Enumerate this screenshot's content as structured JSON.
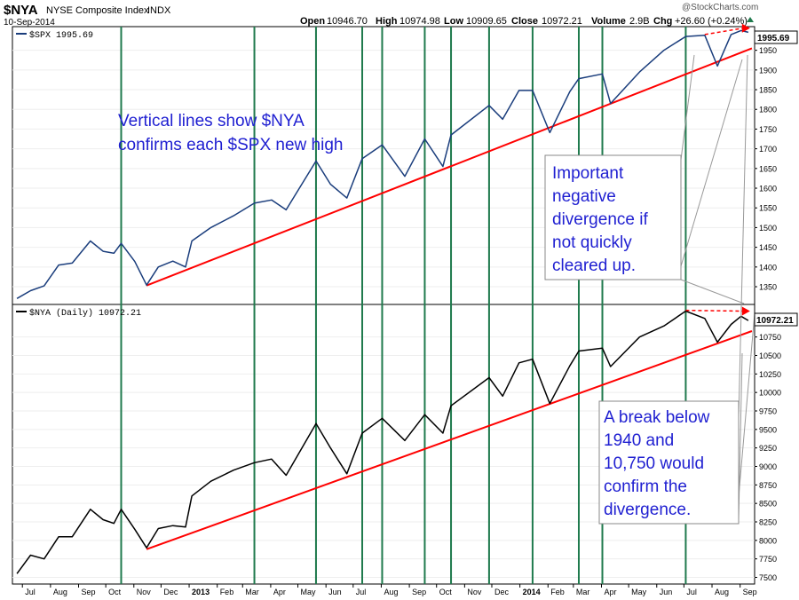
{
  "header": {
    "symbol": "$NYA",
    "name": "NYSE Composite Index",
    "exchange": "INDX",
    "date": "10-Sep-2014",
    "open_label": "Open",
    "open": "10946.70",
    "high_label": "High",
    "high": "10974.98",
    "low_label": "Low",
    "low": "10909.65",
    "close_label": "Close",
    "close": "10972.21",
    "volume_label": "Volume",
    "volume": "2.9B",
    "chg_label": "Chg",
    "chg": "+26.60 (+0.24%)",
    "watermark": "@StockCharts.com"
  },
  "colors": {
    "spx_line": "#1a3d7c",
    "nya_line": "#000000",
    "vlines": "#1f7a4d",
    "trend": "#ff0000",
    "annotation_text": "#1f1fd1"
  },
  "chart_data": {
    "type": "line",
    "x_ticks": [
      "Jul",
      "Aug",
      "Sep",
      "Oct",
      "Nov",
      "Dec",
      "2013",
      "Feb",
      "Mar",
      "Apr",
      "May",
      "Jun",
      "Jul",
      "Aug",
      "Sep",
      "Oct",
      "Nov",
      "Dec",
      "2014",
      "Feb",
      "Mar",
      "Apr",
      "May",
      "Jun",
      "Jul",
      "Aug",
      "Sep"
    ],
    "x_tick_bold": [
      false,
      false,
      false,
      false,
      false,
      false,
      true,
      false,
      false,
      false,
      false,
      false,
      false,
      false,
      false,
      false,
      false,
      false,
      true,
      false,
      false,
      false,
      false,
      false,
      false,
      false,
      false
    ],
    "vertical_line_dates": [
      "2012-10-18",
      "2013-03-14",
      "2013-05-21",
      "2013-07-11",
      "2013-08-02",
      "2013-09-18",
      "2013-10-17",
      "2013-11-28",
      "2014-01-15",
      "2014-03-07",
      "2014-04-02",
      "2014-07-03"
    ],
    "panels": [
      {
        "series_name": "$SPX",
        "label": "$SPX 1995.69",
        "last_value": "1995.69",
        "y_ticks": [
          1350,
          1400,
          1450,
          1500,
          1550,
          1600,
          1650,
          1700,
          1750,
          1800,
          1850,
          1900,
          1950
        ],
        "y_range": [
          1305,
          2010
        ],
        "points": [
          [
            "2012-06-25",
            1320
          ],
          [
            "2012-07-10",
            1340
          ],
          [
            "2012-07-25",
            1352
          ],
          [
            "2012-08-10",
            1405
          ],
          [
            "2012-08-25",
            1410
          ],
          [
            "2012-09-14",
            1466
          ],
          [
            "2012-09-28",
            1440
          ],
          [
            "2012-10-10",
            1435
          ],
          [
            "2012-10-18",
            1460
          ],
          [
            "2012-11-02",
            1414
          ],
          [
            "2012-11-15",
            1354
          ],
          [
            "2012-11-28",
            1400
          ],
          [
            "2012-12-14",
            1415
          ],
          [
            "2012-12-28",
            1400
          ],
          [
            "2013-01-04",
            1466
          ],
          [
            "2013-01-25",
            1500
          ],
          [
            "2013-02-19",
            1530
          ],
          [
            "2013-03-14",
            1562
          ],
          [
            "2013-04-02",
            1570
          ],
          [
            "2013-04-18",
            1545
          ],
          [
            "2013-05-21",
            1669
          ],
          [
            "2013-06-06",
            1610
          ],
          [
            "2013-06-24",
            1575
          ],
          [
            "2013-07-11",
            1675
          ],
          [
            "2013-08-02",
            1710
          ],
          [
            "2013-08-27",
            1630
          ],
          [
            "2013-09-18",
            1725
          ],
          [
            "2013-10-08",
            1655
          ],
          [
            "2013-10-17",
            1735
          ],
          [
            "2013-11-28",
            1810
          ],
          [
            "2013-12-13",
            1775
          ],
          [
            "2013-12-31",
            1848
          ],
          [
            "2014-01-15",
            1848
          ],
          [
            "2014-02-03",
            1741
          ],
          [
            "2014-02-25",
            1845
          ],
          [
            "2014-03-07",
            1878
          ],
          [
            "2014-04-02",
            1890
          ],
          [
            "2014-04-11",
            1815
          ],
          [
            "2014-05-13",
            1895
          ],
          [
            "2014-06-09",
            1950
          ],
          [
            "2014-07-03",
            1985
          ],
          [
            "2014-07-24",
            1988
          ],
          [
            "2014-08-07",
            1910
          ],
          [
            "2014-08-22",
            1990
          ],
          [
            "2014-09-02",
            2000
          ],
          [
            "2014-09-10",
            1995.69
          ]
        ],
        "trendline": [
          [
            "2012-11-15",
            1353
          ],
          [
            "2014-09-14",
            1955
          ]
        ],
        "divergence_arrow": [
          [
            "2014-07-24",
            1990
          ],
          [
            "2014-09-10",
            2006
          ]
        ]
      },
      {
        "series_name": "$NYA (Daily)",
        "label": "$NYA (Daily) 10972.21",
        "last_value": "10972.21",
        "y_ticks": [
          7500,
          7750,
          8000,
          8250,
          8500,
          8750,
          9000,
          9250,
          9500,
          9750,
          10000,
          10250,
          10500,
          10750
        ],
        "y_range": [
          7410,
          11190
        ],
        "points": [
          [
            "2012-06-25",
            7550
          ],
          [
            "2012-07-10",
            7800
          ],
          [
            "2012-07-25",
            7750
          ],
          [
            "2012-08-10",
            8050
          ],
          [
            "2012-08-25",
            8050
          ],
          [
            "2012-09-14",
            8420
          ],
          [
            "2012-09-28",
            8280
          ],
          [
            "2012-10-10",
            8230
          ],
          [
            "2012-10-18",
            8420
          ],
          [
            "2012-11-02",
            8150
          ],
          [
            "2012-11-15",
            7900
          ],
          [
            "2012-11-28",
            8160
          ],
          [
            "2012-12-14",
            8200
          ],
          [
            "2012-12-28",
            8180
          ],
          [
            "2013-01-04",
            8600
          ],
          [
            "2013-01-25",
            8800
          ],
          [
            "2013-02-19",
            8950
          ],
          [
            "2013-03-14",
            9050
          ],
          [
            "2013-04-02",
            9100
          ],
          [
            "2013-04-18",
            8880
          ],
          [
            "2013-05-21",
            9580
          ],
          [
            "2013-06-06",
            9250
          ],
          [
            "2013-06-24",
            8900
          ],
          [
            "2013-07-11",
            9450
          ],
          [
            "2013-08-02",
            9650
          ],
          [
            "2013-08-27",
            9350
          ],
          [
            "2013-09-18",
            9700
          ],
          [
            "2013-10-08",
            9450
          ],
          [
            "2013-10-17",
            9820
          ],
          [
            "2013-11-28",
            10200
          ],
          [
            "2013-12-13",
            9950
          ],
          [
            "2013-12-31",
            10400
          ],
          [
            "2014-01-15",
            10450
          ],
          [
            "2014-02-03",
            9850
          ],
          [
            "2014-02-25",
            10360
          ],
          [
            "2014-03-07",
            10560
          ],
          [
            "2014-04-02",
            10600
          ],
          [
            "2014-04-11",
            10350
          ],
          [
            "2014-05-13",
            10750
          ],
          [
            "2014-06-09",
            10900
          ],
          [
            "2014-07-03",
            11100
          ],
          [
            "2014-07-24",
            11000
          ],
          [
            "2014-08-07",
            10680
          ],
          [
            "2014-08-22",
            10920
          ],
          [
            "2014-09-02",
            11030
          ],
          [
            "2014-09-10",
            10972.21
          ]
        ],
        "trendline": [
          [
            "2012-11-15",
            7880
          ],
          [
            "2014-09-14",
            10830
          ]
        ],
        "divergence_arrow": [
          [
            "2014-07-03",
            11110
          ],
          [
            "2014-09-10",
            11100
          ]
        ]
      }
    ]
  },
  "annotations": {
    "top_note_line1": "Vertical lines show $NYA",
    "top_note_line2": "confirms each $SPX new high",
    "box1_lines": [
      "Important",
      "negative",
      "divergence if",
      "not quickly",
      "cleared up."
    ],
    "box2_lines": [
      "A break below",
      "1940 and",
      "10,750 would",
      "confirm the",
      "divergence."
    ]
  }
}
